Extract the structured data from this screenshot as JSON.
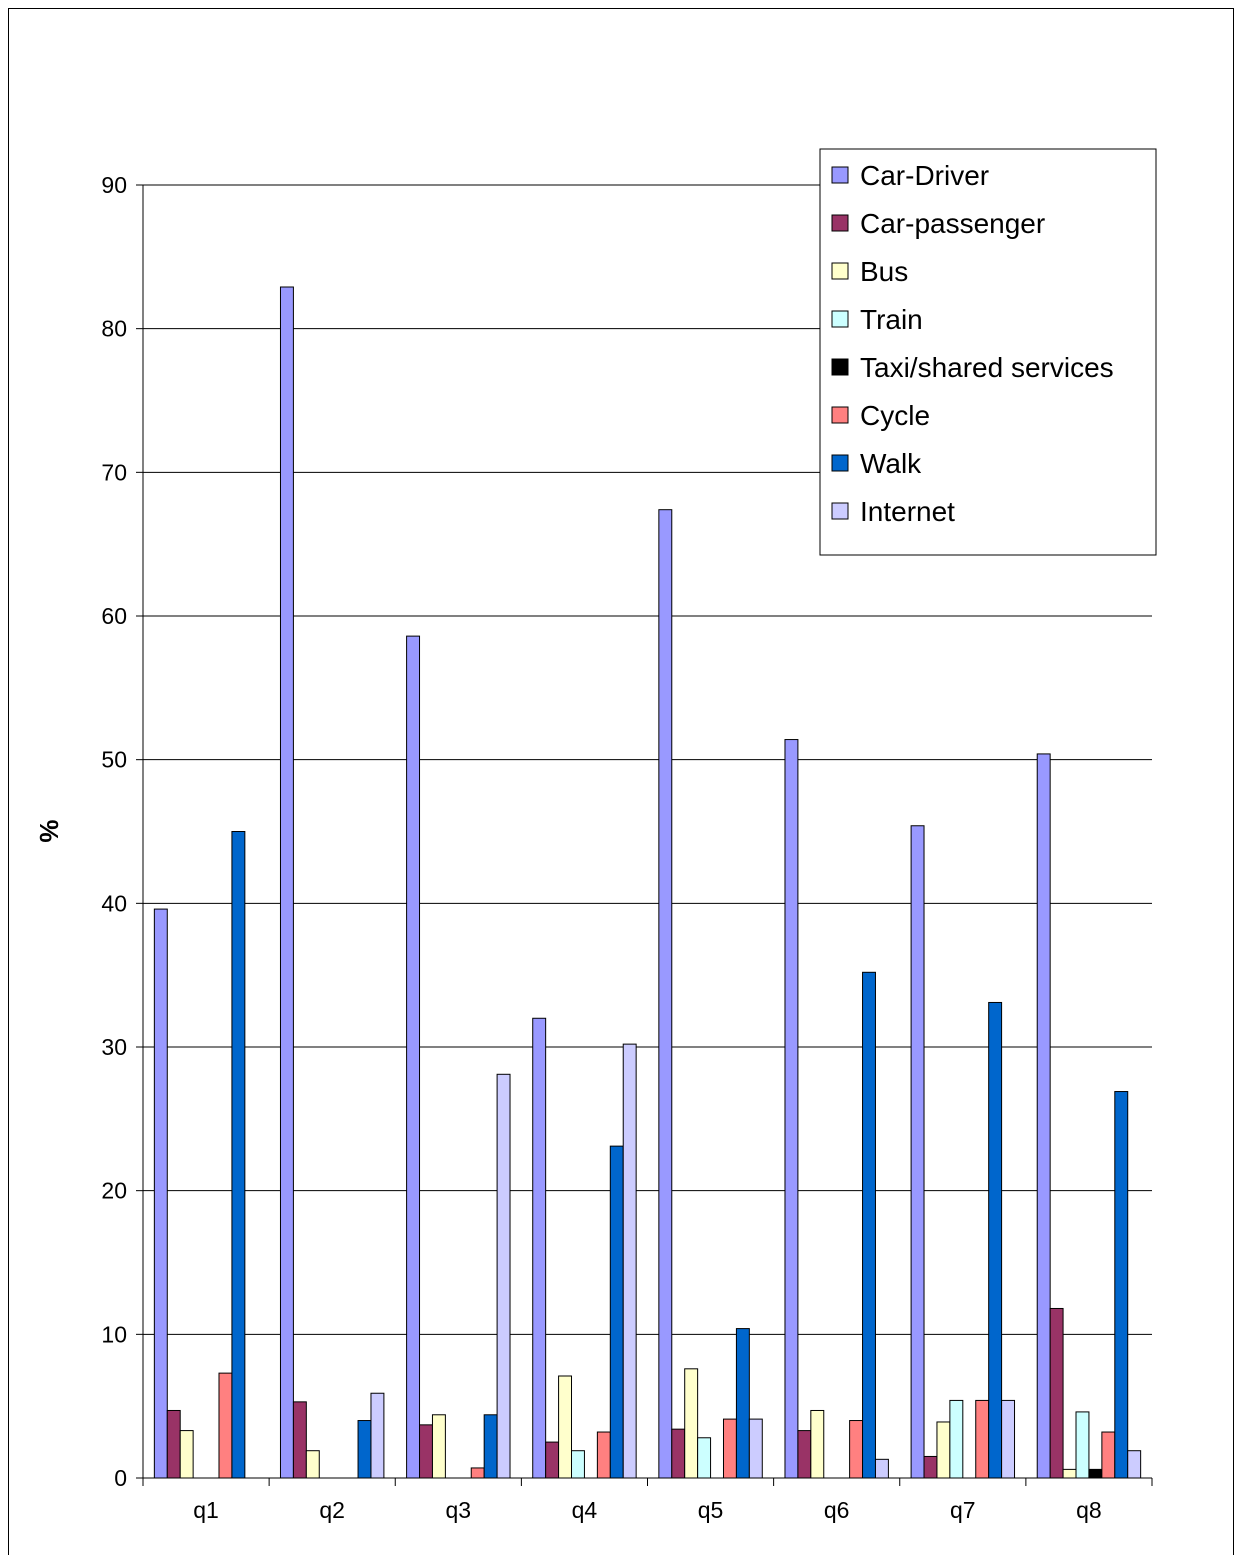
{
  "chart_data": {
    "type": "bar",
    "title": "",
    "xlabel": "",
    "ylabel": "%",
    "ylim": [
      0,
      90
    ],
    "yticks": [
      0,
      10,
      20,
      30,
      40,
      50,
      60,
      70,
      80,
      90
    ],
    "grid": true,
    "legend_position": "top-right",
    "categories": [
      "q1",
      "q2",
      "q3",
      "q4",
      "q5",
      "q6",
      "q7",
      "q8"
    ],
    "series": [
      {
        "name": "Car-Driver",
        "color": "#9999ff",
        "values": [
          39.6,
          82.9,
          58.6,
          32.0,
          67.4,
          51.4,
          45.4,
          50.4
        ]
      },
      {
        "name": "Car-passenger",
        "color": "#993366",
        "values": [
          4.7,
          5.3,
          3.7,
          2.5,
          3.4,
          3.3,
          1.5,
          11.8
        ]
      },
      {
        "name": "Bus",
        "color": "#ffffcc",
        "values": [
          3.3,
          1.9,
          4.4,
          7.1,
          7.6,
          4.7,
          3.9,
          0.6
        ]
      },
      {
        "name": "Train",
        "color": "#ccffff",
        "values": [
          0,
          0,
          0,
          1.9,
          2.8,
          0,
          5.4,
          4.6
        ]
      },
      {
        "name": "Taxi/shared services",
        "color": "#000000",
        "values": [
          0,
          0,
          0,
          0,
          0,
          0,
          0,
          0.6
        ]
      },
      {
        "name": "Cycle",
        "color": "#ff8080",
        "values": [
          7.3,
          0,
          0.7,
          3.2,
          4.1,
          4.0,
          5.4,
          3.2
        ]
      },
      {
        "name": "Walk",
        "color": "#0066cc",
        "values": [
          45.0,
          4.0,
          4.4,
          23.1,
          10.4,
          35.2,
          33.1,
          26.9
        ]
      },
      {
        "name": "Internet",
        "color": "#ccccff",
        "values": [
          0,
          5.9,
          28.1,
          30.2,
          4.1,
          1.3,
          5.4,
          1.9
        ]
      }
    ]
  }
}
